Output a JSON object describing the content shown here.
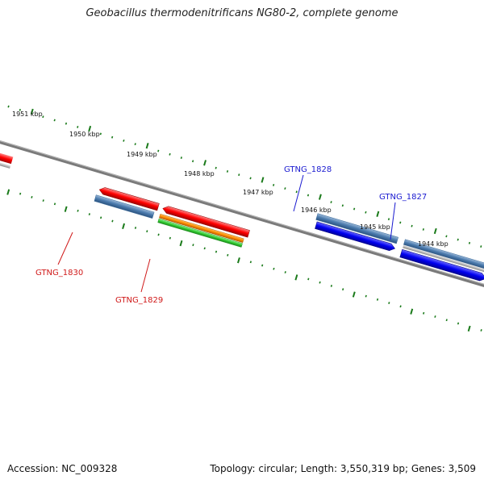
{
  "title": "Geobacillus thermodenitrificans NG80-2, complete genome",
  "footer": {
    "accession": "Accession: NC_009328",
    "stats": "Topology: circular; Length: 3,550,319 bp; Genes: 3,509"
  },
  "colors": {
    "backbone": "#7a7a7a",
    "tick": "#1a7a1a",
    "label_forward": "#1a1ad0",
    "label_reverse": "#d01a1a"
  },
  "kbp_labels": [
    "1951 kbp",
    "1950 kbp",
    "1949 kbp",
    "1948 kbp",
    "1947 kbp",
    "1946 kbp",
    "1945 kbp",
    "1944 kbp"
  ],
  "genes": [
    {
      "id": "GTNG_1830",
      "strand": "reverse"
    },
    {
      "id": "GTNG_1829",
      "strand": "reverse"
    },
    {
      "id": "GTNG_1828",
      "strand": "forward"
    },
    {
      "id": "GTNG_1827",
      "strand": "forward"
    }
  ]
}
